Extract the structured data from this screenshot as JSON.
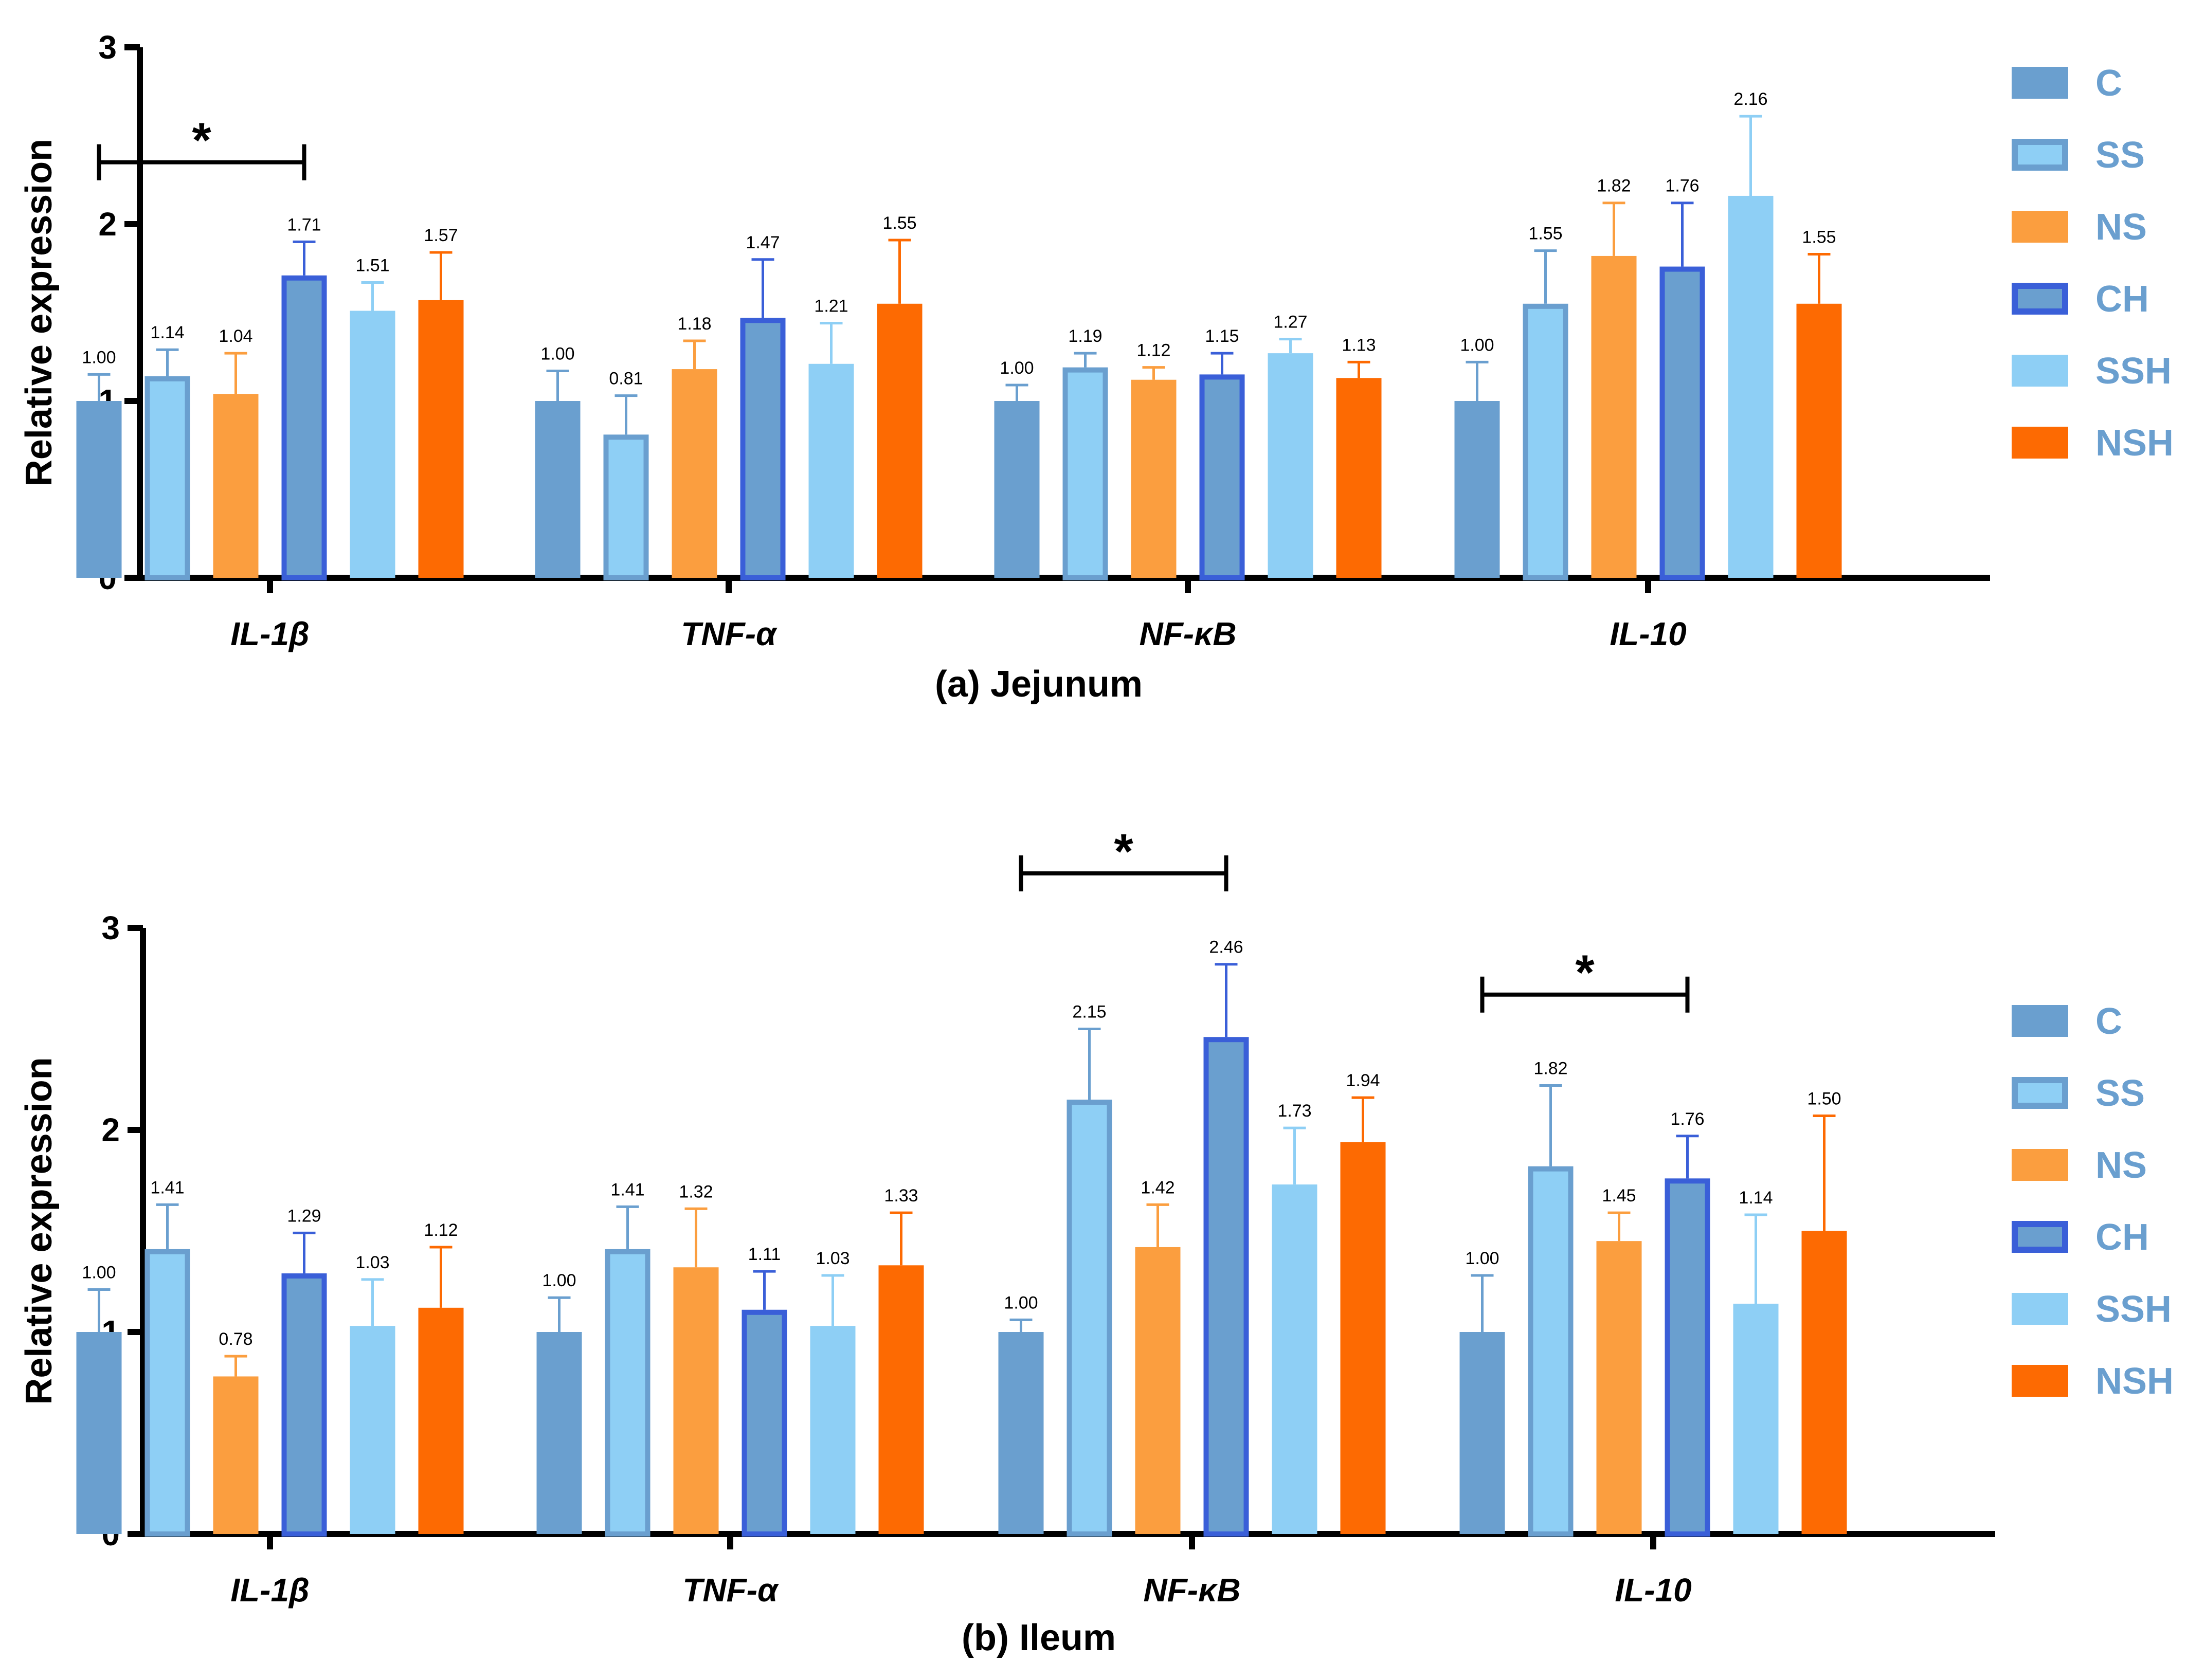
{
  "legend": {
    "series": [
      {
        "name": "C",
        "color": "#6a9fcf",
        "border": "#6a9fcf"
      },
      {
        "name": "SS",
        "color": "#8ecff5",
        "border": "#6a9fcf"
      },
      {
        "name": "NS",
        "color": "#fb9e3f",
        "border": "#fb9e3f"
      },
      {
        "name": "CH",
        "color": "#6a9fcf",
        "border": "#3a5fd8"
      },
      {
        "name": "SSH",
        "color": "#8ecff5",
        "border": "#8ecff5"
      },
      {
        "name": "NSH",
        "color": "#fd6a02",
        "border": "#fd6a02"
      }
    ],
    "text_color": "#6a9fcf"
  },
  "chart_data": [
    {
      "type": "bar",
      "title": "(a) Jejunum",
      "xlabel": "",
      "ylabel": "Relative expression",
      "ylim": [
        0,
        3
      ],
      "yticks": [
        "0",
        "1",
        "2",
        "3"
      ],
      "categories": [
        "IL-1β",
        "TNF-α",
        "NF-κB",
        "IL-10"
      ],
      "series": [
        {
          "name": "C",
          "values": [
            1.0,
            1.0,
            1.0,
            1.0
          ],
          "errors": [
            0.15,
            0.17,
            0.09,
            0.22
          ],
          "labels": [
            "1.00",
            "1.00",
            "1.00",
            "1.00"
          ]
        },
        {
          "name": "SS",
          "values": [
            1.14,
            0.81,
            1.19,
            1.55
          ],
          "errors": [
            0.15,
            0.22,
            0.08,
            0.3
          ],
          "labels": [
            "1.14",
            "0.81",
            "1.19",
            "1.55"
          ]
        },
        {
          "name": "NS",
          "values": [
            1.04,
            1.18,
            1.12,
            1.82
          ],
          "errors": [
            0.23,
            0.16,
            0.07,
            0.3
          ],
          "labels": [
            "1.04",
            "1.18",
            "1.12",
            "1.82"
          ]
        },
        {
          "name": "CH",
          "values": [
            1.71,
            1.47,
            1.15,
            1.76
          ],
          "errors": [
            0.19,
            0.33,
            0.12,
            0.36
          ],
          "labels": [
            "1.71",
            "1.47",
            "1.15",
            "1.76"
          ]
        },
        {
          "name": "SSH",
          "values": [
            1.51,
            1.21,
            1.27,
            2.16
          ],
          "errors": [
            0.16,
            0.23,
            0.08,
            0.45
          ],
          "labels": [
            "1.51",
            "1.21",
            "1.27",
            "2.16"
          ]
        },
        {
          "name": "NSH",
          "values": [
            1.57,
            1.55,
            1.13,
            1.55
          ],
          "errors": [
            0.27,
            0.36,
            0.09,
            0.28
          ],
          "labels": [
            "1.57",
            "1.55",
            "1.13",
            "1.55"
          ]
        }
      ],
      "significance": [
        {
          "category": "IL-1β",
          "from": "C",
          "to": "CH",
          "label": "*"
        }
      ]
    },
    {
      "type": "bar",
      "title": "(b) Ileum",
      "xlabel": "",
      "ylabel": "Relative expression",
      "ylim": [
        0,
        3
      ],
      "yticks": [
        "0",
        "1",
        "2",
        "3"
      ],
      "categories": [
        "IL-1β",
        "TNF-α",
        "NF-κB",
        "IL-10"
      ],
      "series": [
        {
          "name": "C",
          "values": [
            1.0,
            1.0,
            1.0,
            1.0
          ],
          "errors": [
            0.21,
            0.17,
            0.06,
            0.28
          ],
          "labels": [
            "1.00",
            "1.00",
            "1.00",
            "1.00"
          ]
        },
        {
          "name": "SS",
          "values": [
            1.41,
            1.41,
            2.15,
            1.82
          ],
          "errors": [
            0.22,
            0.21,
            0.35,
            0.4
          ],
          "labels": [
            "1.41",
            "1.41",
            "2.15",
            "1.82"
          ]
        },
        {
          "name": "NS",
          "values": [
            0.78,
            1.32,
            1.42,
            1.45
          ],
          "errors": [
            0.1,
            0.29,
            0.21,
            0.14
          ],
          "labels": [
            "0.78",
            "1.32",
            "1.42",
            "1.45"
          ]
        },
        {
          "name": "CH",
          "values": [
            1.29,
            1.11,
            2.46,
            1.76
          ],
          "errors": [
            0.2,
            0.19,
            0.36,
            0.21
          ],
          "labels": [
            "1.29",
            "1.11",
            "2.46",
            "1.76"
          ]
        },
        {
          "name": "SSH",
          "values": [
            1.03,
            1.03,
            1.73,
            1.14
          ],
          "errors": [
            0.23,
            0.25,
            0.28,
            0.44
          ],
          "labels": [
            "1.03",
            "1.03",
            "1.73",
            "1.14"
          ]
        },
        {
          "name": "NSH",
          "values": [
            1.12,
            1.33,
            1.94,
            1.5
          ],
          "errors": [
            0.3,
            0.26,
            0.22,
            0.57
          ],
          "labels": [
            "1.12",
            "1.33",
            "1.94",
            "1.50"
          ]
        }
      ],
      "significance": [
        {
          "category": "NF-κB",
          "from": "C",
          "to": "CH",
          "label": "*"
        },
        {
          "category": "IL-10",
          "from": "C",
          "to": "CH",
          "label": "*"
        }
      ]
    }
  ]
}
